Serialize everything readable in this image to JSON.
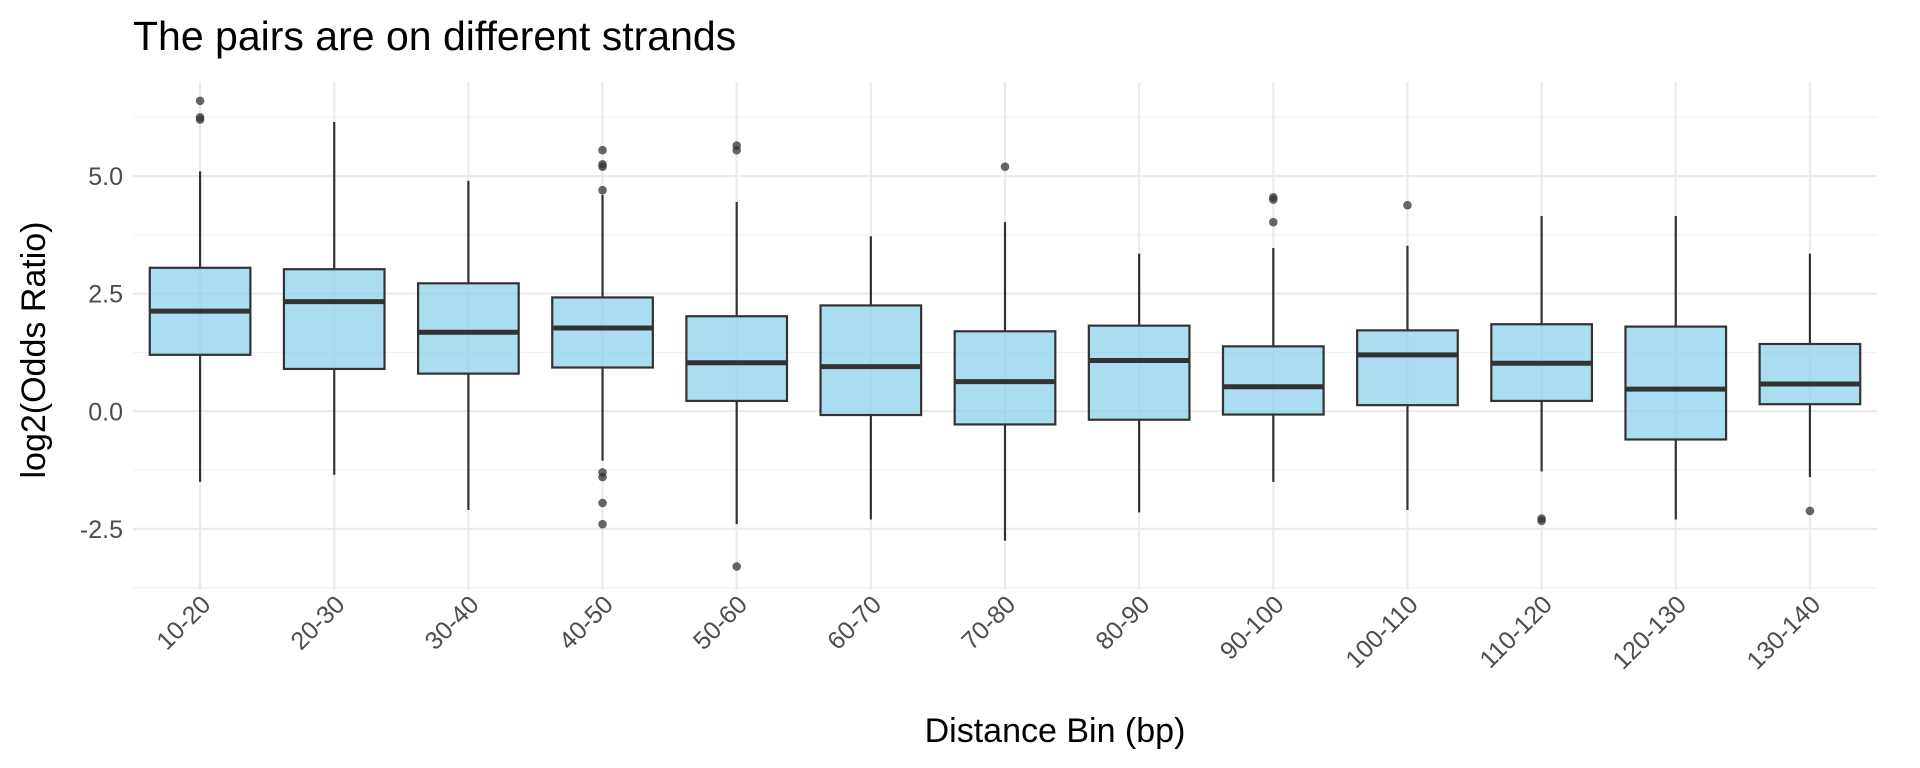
{
  "chart_data": {
    "type": "boxplot",
    "title": "The pairs are on different strands",
    "xlabel": "Distance Bin (bp)",
    "ylabel": "log2(Odds Ratio)",
    "ylim": [
      -3.8,
      7.0
    ],
    "yticks": [
      -2.5,
      0.0,
      2.5,
      5.0
    ],
    "ytick_labels": [
      "-2.5",
      "0.0",
      "2.5",
      "5.0"
    ],
    "grid": true,
    "legend": "none",
    "box_fill": "#87ceeb",
    "box_fill_opacity": 0.7,
    "box_stroke": "#333333",
    "outlier_color": "#333333",
    "categories": [
      "10-20",
      "20-30",
      "30-40",
      "40-50",
      "50-60",
      "60-70",
      "70-80",
      "80-90",
      "90-100",
      "100-110",
      "110-120",
      "120-130",
      "130-140"
    ],
    "boxes": [
      {
        "whisker_low": -1.5,
        "q1": 1.2,
        "median": 2.13,
        "q3": 3.05,
        "whisker_high": 5.1,
        "outliers": [
          6.2,
          6.25,
          6.6
        ]
      },
      {
        "whisker_low": -1.35,
        "q1": 0.9,
        "median": 2.33,
        "q3": 3.02,
        "whisker_high": 6.15,
        "outliers": []
      },
      {
        "whisker_low": -2.1,
        "q1": 0.8,
        "median": 1.68,
        "q3": 2.72,
        "whisker_high": 4.9,
        "outliers": []
      },
      {
        "whisker_low": -1.05,
        "q1": 0.93,
        "median": 1.77,
        "q3": 2.42,
        "whisker_high": 4.6,
        "outliers": [
          5.2,
          5.25,
          5.55,
          4.7,
          -1.3,
          -1.4,
          -1.95,
          -2.4
        ]
      },
      {
        "whisker_low": -2.4,
        "q1": 0.22,
        "median": 1.03,
        "q3": 2.02,
        "whisker_high": 4.45,
        "outliers": [
          5.55,
          5.65,
          -3.3
        ]
      },
      {
        "whisker_low": -2.3,
        "q1": -0.08,
        "median": 0.95,
        "q3": 2.25,
        "whisker_high": 3.72,
        "outliers": []
      },
      {
        "whisker_low": -2.75,
        "q1": -0.28,
        "median": 0.63,
        "q3": 1.7,
        "whisker_high": 4.02,
        "outliers": [
          5.2
        ]
      },
      {
        "whisker_low": -2.15,
        "q1": -0.18,
        "median": 1.08,
        "q3": 1.82,
        "whisker_high": 3.35,
        "outliers": []
      },
      {
        "whisker_low": -1.5,
        "q1": -0.07,
        "median": 0.52,
        "q3": 1.38,
        "whisker_high": 3.47,
        "outliers": [
          4.02,
          4.5,
          4.55
        ]
      },
      {
        "whisker_low": -2.1,
        "q1": 0.13,
        "median": 1.2,
        "q3": 1.72,
        "whisker_high": 3.52,
        "outliers": [
          4.38
        ]
      },
      {
        "whisker_low": -1.28,
        "q1": 0.22,
        "median": 1.02,
        "q3": 1.85,
        "whisker_high": 4.15,
        "outliers": [
          -2.28,
          -2.33
        ]
      },
      {
        "whisker_low": -2.3,
        "q1": -0.6,
        "median": 0.47,
        "q3": 1.8,
        "whisker_high": 4.15,
        "outliers": []
      },
      {
        "whisker_low": -1.4,
        "q1": 0.15,
        "median": 0.58,
        "q3": 1.43,
        "whisker_high": 3.35,
        "outliers": [
          -2.12
        ]
      }
    ]
  }
}
